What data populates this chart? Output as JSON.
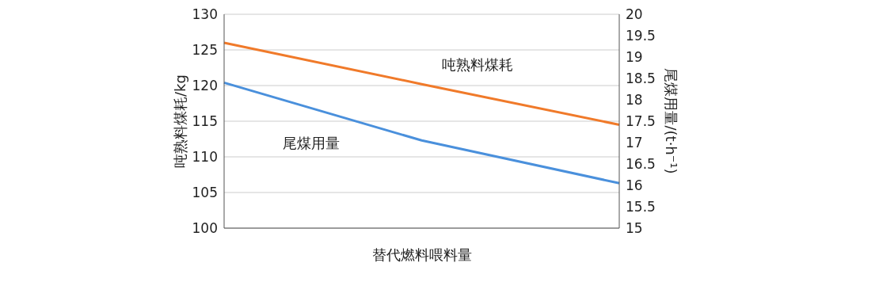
{
  "chart_data": {
    "type": "line",
    "xlabel": "替代燃料喂料量",
    "ylabel": "吨熟料煤耗/kg",
    "y2label": "尾煤用量/(t·h⁻¹)",
    "categories": [
      null,
      null,
      null
    ],
    "series": [
      {
        "name": "吨熟料煤耗",
        "color": "#f07a2a",
        "values": [
          126,
          120.2,
          114.5
        ]
      },
      {
        "name": "尾煤用量",
        "color": "#4a90dc",
        "values": [
          18.4,
          17.05,
          16.05
        ],
        "axis": "y2"
      }
    ],
    "ylim": [
      100,
      130
    ],
    "yticks": [
      100,
      105,
      110,
      115,
      120,
      125,
      130
    ],
    "y2lim": [
      15,
      20
    ],
    "y2ticks": [
      15,
      15.5,
      16,
      16.5,
      17,
      17.5,
      18,
      18.5,
      19,
      19.5,
      20
    ],
    "grid": "y",
    "legend": false,
    "marker": "none",
    "line_style": "solid"
  }
}
